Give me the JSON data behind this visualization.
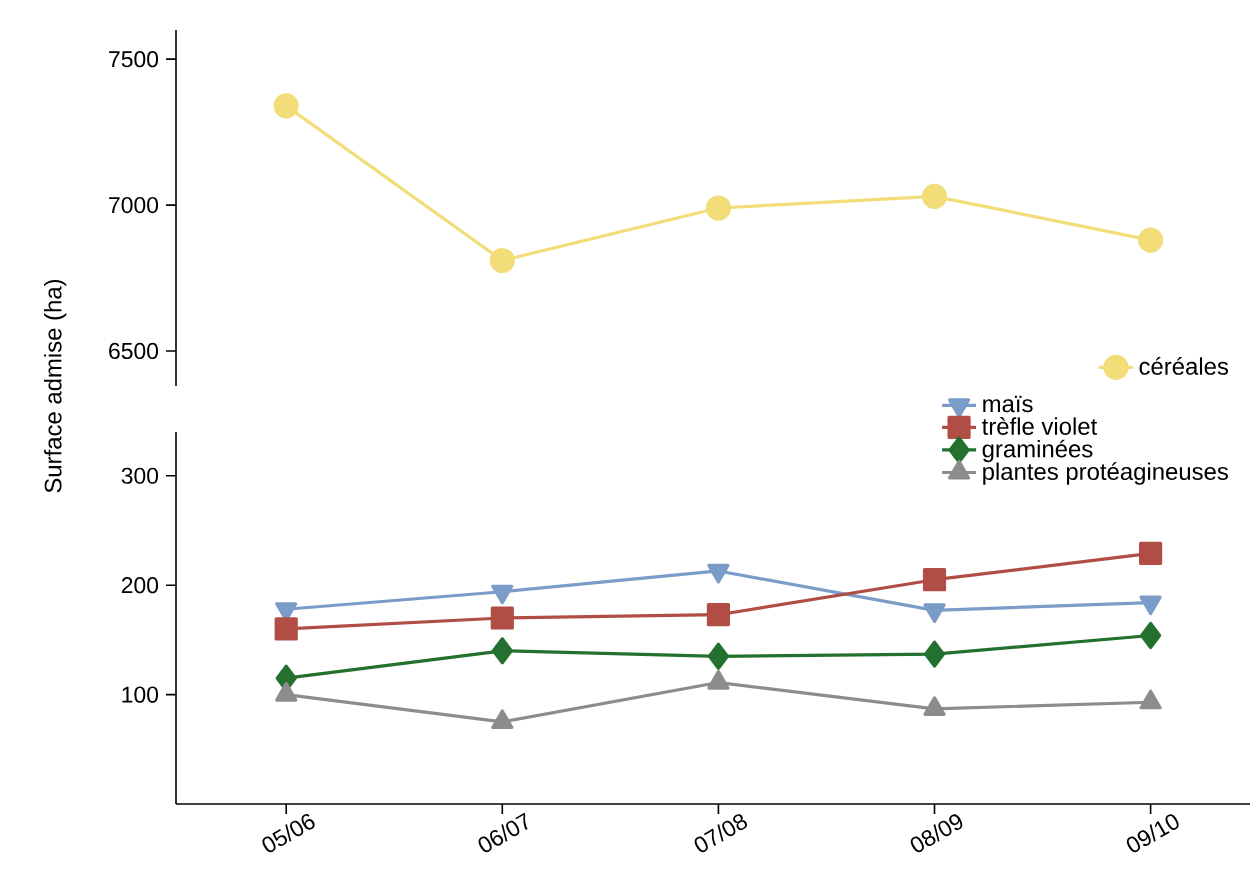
{
  "chart_data": [
    {
      "type": "line",
      "ylabel": "Surface admise (ha)",
      "categories": [
        null,
        null,
        null,
        null,
        null
      ],
      "ylim": [
        6380,
        7600
      ],
      "yticks": [
        6500,
        7000,
        7500
      ],
      "tick_labels": "y",
      "legend": "bottom right",
      "grid": false,
      "series": [
        {
          "name": "céréales",
          "color": "#f2dd78",
          "marker": "circle",
          "values": [
            7340,
            6810,
            6990,
            7030,
            6880
          ]
        }
      ]
    },
    {
      "type": "line",
      "categories": [
        "05/06",
        "06/07",
        "07/08",
        "08/09",
        "09/10"
      ],
      "ylim": [
        0,
        340
      ],
      "yticks": [
        100,
        200,
        300
      ],
      "legend": "top right",
      "grid": false,
      "series": [
        {
          "name": "maïs",
          "color": "#7b9cc8",
          "marker": "triangle-down",
          "values": [
            178,
            194,
            213,
            177,
            184
          ]
        },
        {
          "name": "trèfle violet",
          "color": "#b04d45",
          "marker": "square",
          "values": [
            160,
            170,
            173,
            205,
            229
          ]
        },
        {
          "name": "graminées",
          "color": "#23702f",
          "marker": "diamond",
          "values": [
            115,
            140,
            135,
            137,
            154
          ]
        },
        {
          "name": "plantes protéagineuses",
          "color": "#8c8c8c",
          "marker": "triangle",
          "values": [
            100,
            75,
            111,
            87,
            93
          ]
        }
      ]
    }
  ]
}
